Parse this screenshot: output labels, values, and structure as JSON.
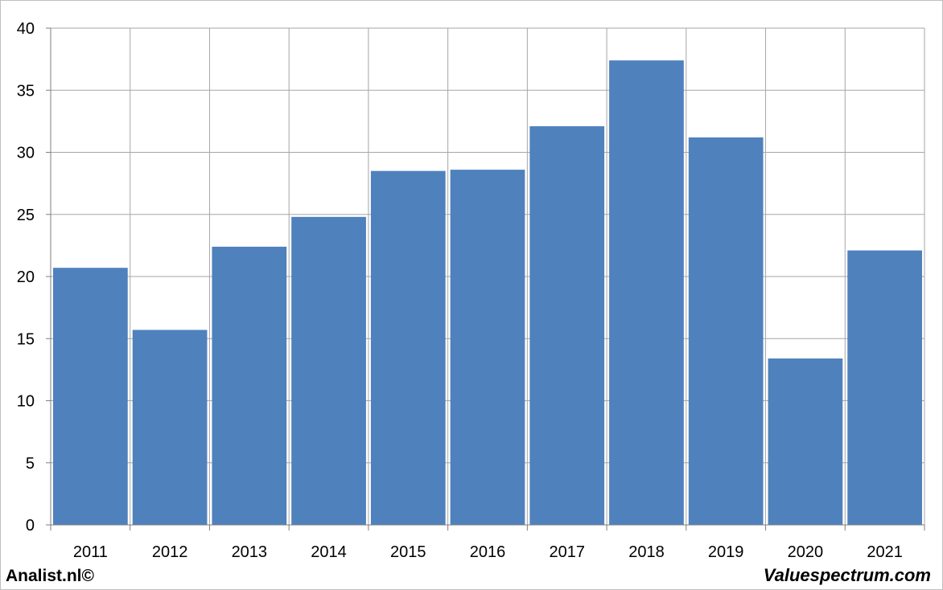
{
  "chart_data": {
    "type": "bar",
    "categories": [
      "2011",
      "2012",
      "2013",
      "2014",
      "2015",
      "2016",
      "2017",
      "2018",
      "2019",
      "2020",
      "2021"
    ],
    "values": [
      20.7,
      15.7,
      22.4,
      24.8,
      28.5,
      28.6,
      32.1,
      37.4,
      31.2,
      13.4,
      22.1
    ],
    "ylim": [
      0,
      40
    ],
    "yticks": [
      0,
      5,
      10,
      15,
      20,
      25,
      30,
      35,
      40
    ],
    "grid": true,
    "bar_color": "#4f81bd",
    "grid_color": "#a6a6a6"
  },
  "footer": {
    "left": "Analist.nl©",
    "right": "Valuespectrum.com"
  }
}
